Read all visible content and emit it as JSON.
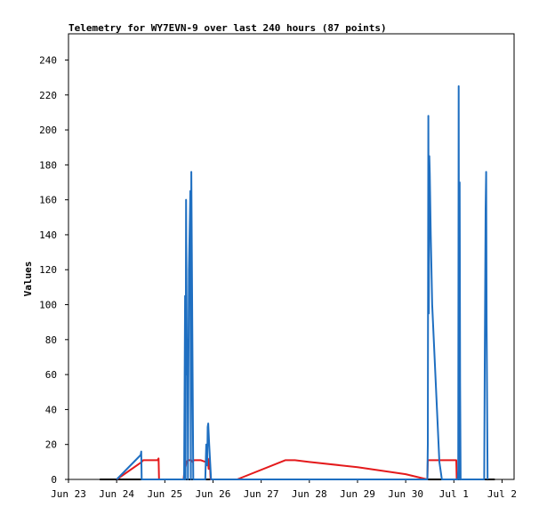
{
  "chart_data": {
    "type": "line",
    "title": "Telemetry for WY7EVN-9 over last 240 hours (87 points)",
    "xlabel": "",
    "ylabel": "Values",
    "ylim": [
      0,
      255
    ],
    "xlim": [
      "Jun 23 00:00",
      "Jul 2 06:00"
    ],
    "yticks": [
      0,
      20,
      40,
      60,
      80,
      100,
      120,
      140,
      160,
      180,
      200,
      220,
      240
    ],
    "xticks": [
      {
        "label": "Jun 23",
        "day": 0
      },
      {
        "label": "Jun 24",
        "day": 1
      },
      {
        "label": "Jun 25",
        "day": 2
      },
      {
        "label": "Jun 26",
        "day": 3
      },
      {
        "label": "Jun 27",
        "day": 4
      },
      {
        "label": "Jun 28",
        "day": 5
      },
      {
        "label": "Jun 29",
        "day": 6
      },
      {
        "label": "Jun 30",
        "day": 7
      },
      {
        "label": "Jul 1",
        "day": 8
      },
      {
        "label": "Jul 2",
        "day": 9
      }
    ],
    "grid": false,
    "legend": "none",
    "series": [
      {
        "color": "#000000",
        "x": [
          0.65,
          8.85
        ],
        "y": [
          0,
          0
        ]
      },
      {
        "color": "#e41a1c",
        "x": [
          1.0,
          1.52,
          1.55,
          1.85,
          1.87,
          1.88,
          2.39,
          2.4,
          2.45,
          2.48,
          2.55,
          2.58,
          2.6,
          2.75,
          2.85,
          2.89,
          2.91,
          2.93,
          2.95,
          3.5,
          4.5,
          4.7,
          5.0,
          6.0,
          7.0,
          7.45,
          7.46,
          8.05,
          8.06
        ],
        "y": [
          0,
          10,
          11,
          11,
          12,
          0,
          0,
          3,
          10,
          11,
          11,
          10,
          11,
          11,
          10,
          12,
          6,
          12,
          0,
          0,
          11,
          11,
          10,
          7,
          3,
          0,
          11,
          11,
          0
        ]
      },
      {
        "color": "#1f6fc1",
        "x": [
          1.0,
          1.5,
          1.51,
          1.52,
          2.4,
          2.42,
          2.43,
          2.44,
          2.46,
          2.47,
          2.48,
          2.5,
          2.52,
          2.53,
          2.54,
          2.55,
          2.57,
          2.59,
          2.62,
          2.64,
          2.84,
          2.86,
          2.88,
          2.89,
          2.9,
          2.92,
          2.96,
          7.45,
          7.46,
          7.47,
          7.48,
          7.49,
          7.5,
          7.52,
          7.55,
          7.6,
          7.65,
          7.7,
          7.75,
          8.08,
          8.09,
          8.1,
          8.11,
          8.12,
          8.13,
          8.14,
          8.63,
          8.64,
          8.65,
          8.66,
          8.67,
          8.68,
          8.7
        ],
        "y": [
          0,
          14,
          16,
          0,
          0,
          105,
          0,
          160,
          60,
          80,
          0,
          120,
          150,
          165,
          0,
          176,
          88,
          0,
          0,
          0,
          0,
          20,
          8,
          30,
          32,
          20,
          0,
          0,
          20,
          208,
          95,
          185,
          175,
          140,
          100,
          70,
          40,
          10,
          0,
          0,
          5,
          225,
          0,
          170,
          55,
          0,
          0,
          65,
          110,
          155,
          176,
          90,
          0
        ]
      }
    ]
  }
}
